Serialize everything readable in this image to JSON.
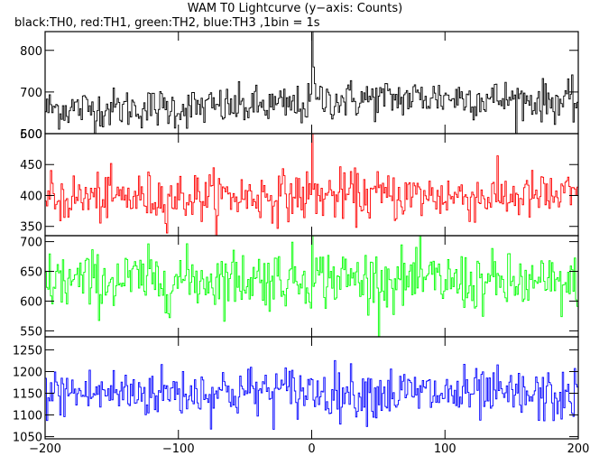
{
  "title": "WAM T0 Lightcurve (y−axis: Counts)",
  "subtitle": "black:TH0, red:TH1, green:TH2, blue:TH3 ,1bin = 1s",
  "chart_data": {
    "type": "line",
    "xlim": [
      -200,
      200
    ],
    "x_step": 1,
    "x_ticks": [
      -200,
      -100,
      0,
      100,
      200
    ],
    "x_tick_labels": [
      "−200",
      "−100",
      "0",
      "100",
      "200"
    ],
    "panels": [
      {
        "series_name": "TH0",
        "color": "#000000",
        "ylim": [
          600,
          845
        ],
        "y_ticks": [
          600,
          700,
          800
        ],
        "y_tick_labels": [
          "600",
          "700",
          "800"
        ],
        "baseline": 665,
        "noise_sd": 24,
        "drift": [
          [
            -200,
            660
          ],
          [
            -100,
            662
          ],
          [
            -2,
            668
          ],
          [
            5,
            680
          ],
          [
            100,
            688
          ],
          [
            200,
            675
          ]
        ],
        "peaks": [
          [
            0,
            850
          ],
          [
            1,
            760
          ],
          [
            2,
            720
          ],
          [
            200,
            790
          ]
        ]
      },
      {
        "series_name": "TH1",
        "color": "#ff0000",
        "ylim": [
          335,
          500
        ],
        "y_ticks": [
          350,
          400,
          450,
          500
        ],
        "y_tick_labels": [
          "350",
          "400",
          "450",
          "500"
        ],
        "baseline": 398,
        "noise_sd": 20,
        "drift": [
          [
            -200,
            395
          ],
          [
            0,
            400
          ],
          [
            200,
            398
          ]
        ],
        "peaks": [
          [
            0,
            500
          ]
        ]
      },
      {
        "series_name": "TH2",
        "color": "#00ff00",
        "ylim": [
          540,
          710
        ],
        "y_ticks": [
          550,
          600,
          650,
          700
        ],
        "y_tick_labels": [
          "550",
          "600",
          "650",
          "700"
        ],
        "baseline": 630,
        "noise_sd": 25,
        "drift": [
          [
            -200,
            632
          ],
          [
            0,
            640
          ],
          [
            200,
            625
          ]
        ],
        "peaks": [
          [
            0,
            715
          ]
        ]
      },
      {
        "series_name": "TH3",
        "color": "#0000ff",
        "ylim": [
          1045,
          1280
        ],
        "y_ticks": [
          1050,
          1100,
          1150,
          1200,
          1250
        ],
        "y_tick_labels": [
          "1050",
          "1100",
          "1150",
          "1200",
          "1250"
        ],
        "baseline": 1150,
        "noise_sd": 30,
        "drift": [
          [
            -200,
            1150
          ],
          [
            0,
            1155
          ],
          [
            200,
            1140
          ]
        ],
        "peaks": []
      }
    ]
  }
}
